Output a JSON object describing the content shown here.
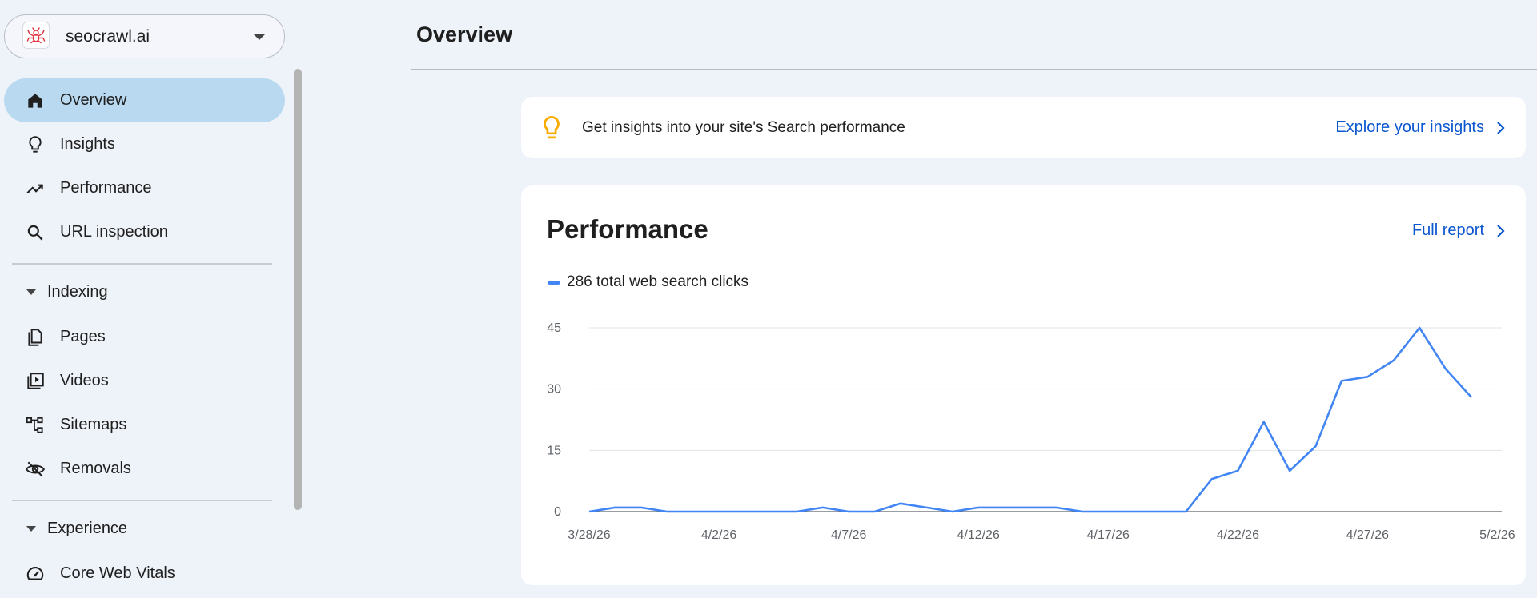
{
  "property": {
    "name": "seocrawl.ai",
    "logo_icon": "spider-logo-icon",
    "dropdown_icon": "caret-down-icon"
  },
  "sidebar": {
    "items": [
      {
        "label": "Overview",
        "icon": "home-icon",
        "active": true
      },
      {
        "label": "Insights",
        "icon": "lightbulb-icon",
        "active": false
      },
      {
        "label": "Performance",
        "icon": "trending-up-icon",
        "active": false
      },
      {
        "label": "URL inspection",
        "icon": "search-icon",
        "active": false
      }
    ],
    "sections": [
      {
        "label": "Indexing",
        "items": [
          {
            "label": "Pages",
            "icon": "pages-icon"
          },
          {
            "label": "Videos",
            "icon": "video-library-icon"
          },
          {
            "label": "Sitemaps",
            "icon": "sitemap-icon"
          },
          {
            "label": "Removals",
            "icon": "visibility-off-icon"
          }
        ]
      },
      {
        "label": "Experience",
        "items": [
          {
            "label": "Core Web Vitals",
            "icon": "speedometer-icon"
          }
        ]
      }
    ]
  },
  "main": {
    "title": "Overview",
    "insights_card": {
      "text": "Get insights into your site's Search performance",
      "link": "Explore your insights"
    },
    "performance_card": {
      "title": "Performance",
      "link": "Full report",
      "legend": "286 total web search clicks"
    }
  },
  "colors": {
    "accent": "#4285f4",
    "link": "#0b57d0",
    "active_nav": "#b8d9ef",
    "bulb": "#f9ab00"
  },
  "chart_data": {
    "type": "line",
    "series": [
      {
        "name": "286 total web search clicks",
        "values": [
          0,
          1,
          1,
          0,
          0,
          0,
          0,
          0,
          0,
          1,
          0,
          0,
          2,
          1,
          0,
          1,
          1,
          1,
          1,
          0,
          0,
          0,
          0,
          0,
          8,
          10,
          22,
          10,
          16,
          32,
          33,
          37,
          45,
          35,
          28
        ]
      }
    ],
    "x": [
      "3/28/26",
      "3/29/26",
      "3/30/26",
      "3/31/26",
      "4/1/26",
      "4/2/26",
      "4/3/26",
      "4/4/26",
      "4/5/26",
      "4/6/26",
      "4/7/26",
      "4/8/26",
      "4/9/26",
      "4/10/26",
      "4/11/26",
      "4/12/26",
      "4/13/26",
      "4/14/26",
      "4/15/26",
      "4/16/26",
      "4/17/26",
      "4/18/26",
      "4/19/26",
      "4/20/26",
      "4/21/26",
      "4/22/26",
      "4/23/26",
      "4/24/26",
      "4/25/26",
      "4/26/26",
      "4/27/26",
      "4/28/26",
      "4/29/26",
      "4/30/26",
      "5/1/26"
    ],
    "x_tick_labels": [
      "3/28/26",
      "4/2/26",
      "4/7/26",
      "4/12/26",
      "4/17/26",
      "4/22/26",
      "4/27/26",
      "5/2/26"
    ],
    "y_ticks": [
      0,
      15,
      30,
      45
    ],
    "ylim": [
      0,
      45
    ],
    "grid": true,
    "legend": "top-left"
  }
}
